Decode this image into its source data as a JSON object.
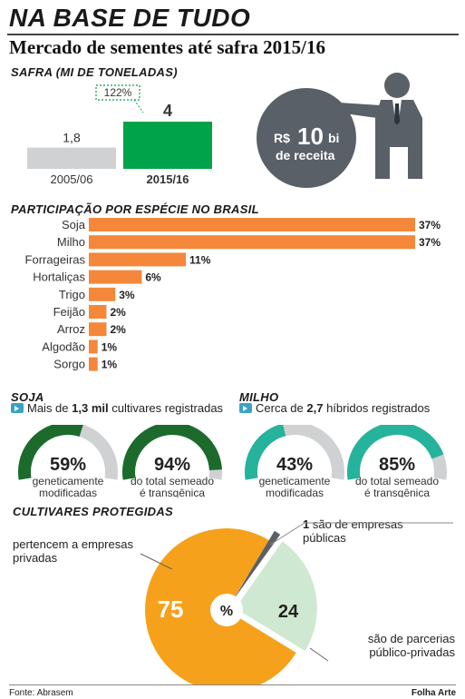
{
  "header": {
    "title": "NA BASE DE TUDO",
    "subtitle": "Mercado de sementes até safra 2015/16"
  },
  "colors": {
    "orange": "#f4873a",
    "green": "#00a24a",
    "dark_green": "#1c6b2c",
    "teal": "#26b39c",
    "gray": "#cfd1d2",
    "dark_gray": "#5a6068",
    "pie_orange": "#f6a11b",
    "pie_light_green": "#cfe8d1"
  },
  "safra": {
    "section_title": "SAFRA (MI DE TONELADAS)",
    "growth_label": "122%",
    "revenue": {
      "prefix": "R$",
      "value": "10",
      "unit": "bi",
      "caption": "de receita"
    }
  },
  "participacao": {
    "section_title": "PARTICIPAÇÃO POR ESPÉCIE NO BRASIL"
  },
  "soja": {
    "section_title": "SOJA",
    "note_pre": "Mais de ",
    "note_bold": "1,3 mil",
    "note_post": " cultivares registradas",
    "donuts": [
      {
        "value_label": "59%",
        "caption_1": "geneticamente",
        "caption_2": "modificadas"
      },
      {
        "value_label": "94%",
        "caption_1": "do total semeado",
        "caption_2": "é transgênica"
      }
    ]
  },
  "milho": {
    "section_title": "MILHO",
    "note_pre": "Cerca de ",
    "note_bold": "2,7",
    "note_post": " híbridos registrados",
    "donuts": [
      {
        "value_label": "43%",
        "caption_1": "geneticamente",
        "caption_2": "modificadas"
      },
      {
        "value_label": "85%",
        "caption_1": "do total semeado",
        "caption_2": "é transgênica"
      }
    ]
  },
  "cultivares": {
    "section_title": "CULTIVARES PROTEGIDAS",
    "label_privadas": "pertencem a empresas privadas",
    "label_publicas_num": "1",
    "label_publicas": "são de empresas públicas",
    "label_parcerias": "são de parcerias público-privadas",
    "value_privadas": "75",
    "value_parcerias": "24",
    "center_symbol": "%"
  },
  "footer": {
    "source": "Fonte: Abrasem",
    "credit": "Folha Arte"
  },
  "chart_data": [
    {
      "type": "bar",
      "categories": [
        "2005/06",
        "2015/16"
      ],
      "values": [
        1.8,
        4
      ],
      "value_labels": [
        "1,8",
        "4"
      ],
      "title": "SAFRA (MI DE TONELADAS)"
    },
    {
      "type": "bar",
      "orientation": "horizontal",
      "title": "PARTICIPAÇÃO POR ESPÉCIE NO BRASIL",
      "categories": [
        "Soja",
        "Milho",
        "Forrageiras",
        "Hortaliças",
        "Trigo",
        "Feijão",
        "Arroz",
        "Algodão",
        "Sorgo"
      ],
      "values": [
        37,
        37,
        11,
        6,
        3,
        2,
        2,
        1,
        1
      ],
      "value_labels": [
        "37%",
        "37%",
        "11%",
        "6%",
        "3%",
        "2%",
        "2%",
        "1%",
        "1%"
      ]
    },
    {
      "type": "pie",
      "title": "SOJA",
      "donuts": [
        {
          "value": 59
        },
        {
          "value": 94
        }
      ]
    },
    {
      "type": "pie",
      "title": "MILHO",
      "donuts": [
        {
          "value": 43
        },
        {
          "value": 85
        }
      ]
    },
    {
      "type": "pie",
      "title": "CULTIVARES PROTEGIDAS",
      "categories": [
        "pertencem a empresas privadas",
        "são de parcerias público-privadas",
        "são de empresas públicas"
      ],
      "values": [
        75,
        24,
        1
      ]
    }
  ]
}
